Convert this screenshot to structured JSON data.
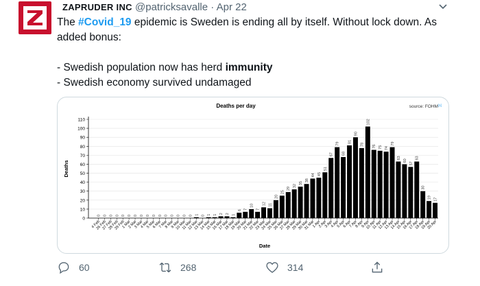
{
  "tweet": {
    "author_name": "ZAPRUDER INC",
    "handle": "@patricksavalle",
    "separator": "·",
    "time": "Apr 22",
    "text_prefix": "The ",
    "hashtag": "#Covid_19",
    "text_line1_rest": " epidemic is Sweden is ending all by itself. Without lock down. As added bonus:",
    "bullet1_prefix": "- Swedish population now has herd ",
    "bullet1_bold": "immunity",
    "bullet2": "- Swedish economy survived undamaged",
    "avatar_letter": "Z",
    "replies": "60",
    "retweets": "268",
    "likes": "314"
  },
  "icons": {
    "avatar": "z-logo-icon",
    "caret": "chevron-down-icon",
    "reply": "reply-icon",
    "retweet": "retweet-icon",
    "like": "heart-icon",
    "share": "share-icon"
  },
  "colors": {
    "brand_red": "#c8102e",
    "link_blue": "#1d9bf0",
    "muted": "#536471",
    "bar": "#000000"
  },
  "chart_data": {
    "type": "bar",
    "title": "Deaths per day",
    "source": "source: FOHM",
    "source_ref": "[1]",
    "xlabel": "Date",
    "ylabel": "Deaths",
    "ylim": [
      0,
      110
    ],
    "yticks": [
      0,
      10,
      20,
      30,
      40,
      50,
      60,
      70,
      80,
      90,
      100,
      110
    ],
    "grid": true,
    "categories": [
      "4 Feb",
      "26 Feb",
      "27 Feb",
      "28 Feb",
      "29 Feb",
      "1 Mar",
      "2 Mar",
      "3 Mar",
      "4 Mar",
      "5 Mar",
      "6 Mar",
      "7 Mar",
      "8 Mar",
      "9 Mar",
      "10 Mar",
      "11 Mar",
      "12 Mar",
      "13 Mar",
      "14 Mar",
      "15 Mar",
      "16 Mar",
      "17 Mar",
      "18 Mar",
      "19 Mar",
      "20 Mar",
      "21 Mar",
      "22 Mar",
      "23 Mar",
      "24 Mar",
      "25 Mar",
      "26 Mar",
      "27 Mar",
      "28 Mar",
      "29 Mar",
      "30 Mar",
      "31 Mar",
      "1 Apr",
      "2 Apr",
      "3 Apr",
      "4 Apr",
      "5 Apr",
      "6 Apr",
      "7 Apr",
      "8 Apr",
      "9 Apr",
      "10 Apr",
      "11 Apr",
      "12 Apr",
      "13 Apr",
      "14 Apr",
      "15 Apr",
      "16 Apr",
      "17 Apr",
      "18 Apr",
      "19 Apr",
      "20 Apr"
    ],
    "values": [
      0,
      0,
      0,
      0,
      0,
      0,
      0,
      0,
      0,
      0,
      0,
      0,
      0,
      0,
      0,
      0,
      1,
      0,
      1,
      1,
      2,
      2,
      1,
      6,
      7,
      10,
      7,
      12,
      11,
      20,
      25,
      29,
      32,
      35,
      38,
      44,
      45,
      51,
      67,
      79,
      68,
      81,
      90,
      78,
      102,
      76,
      75,
      74,
      79,
      63,
      60,
      57,
      63,
      30,
      19,
      17
    ]
  }
}
